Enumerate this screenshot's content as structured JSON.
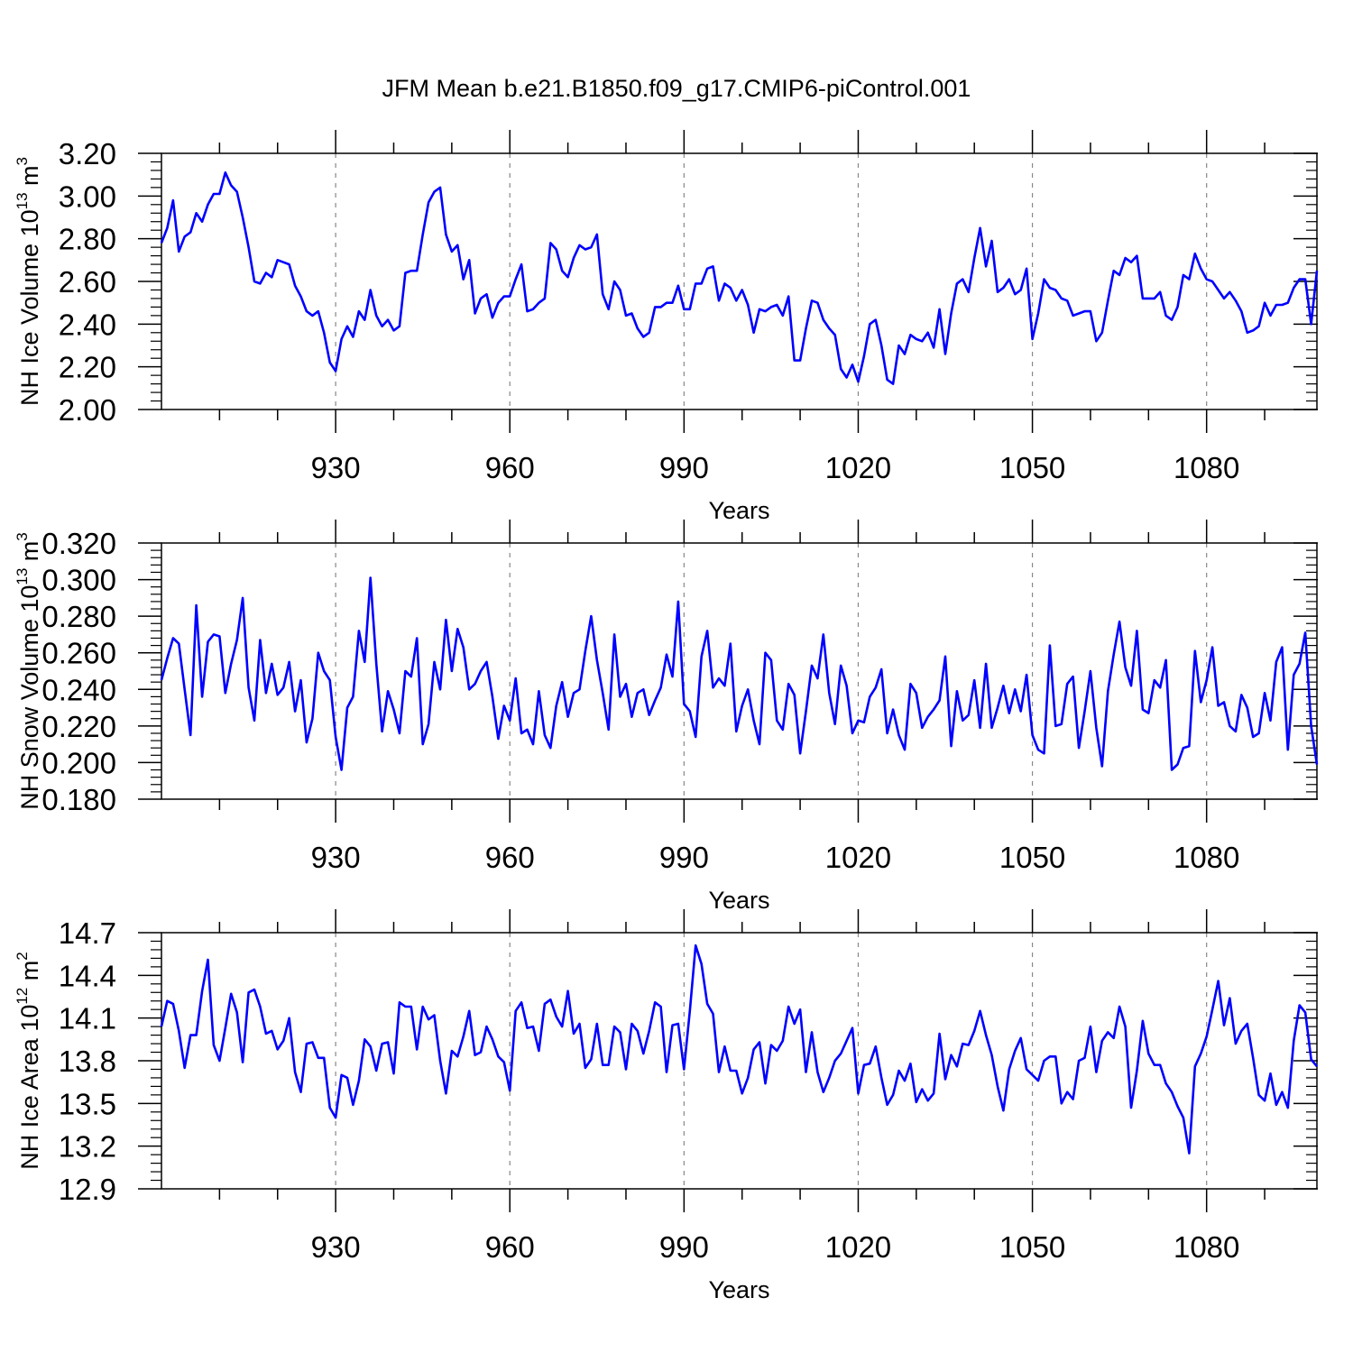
{
  "title": "JFM Mean b.e21.B1850.f09_g17.CMIP6-piControl.001",
  "colors": {
    "series": "#0000ff",
    "axis": "#000000",
    "grid": "#888888"
  },
  "chart_data": [
    {
      "type": "line",
      "ylabel": "NH Ice Volume 10^13 m^3",
      "ylabel_base": "NH Ice Volume 10",
      "ylabel_exp": "13",
      "ylabel_unit": " m",
      "ylabel_unit_exp": "3",
      "xlabel": "Years",
      "xlim": [
        900,
        1099
      ],
      "ylim": [
        2.0,
        3.2
      ],
      "yticks": [
        "2.00",
        "2.20",
        "2.40",
        "2.60",
        "2.80",
        "3.00",
        "3.20"
      ],
      "xticks": [
        "930",
        "960",
        "990",
        "1020",
        "1050",
        "1080"
      ],
      "x_start": 900,
      "values": [
        2.78,
        2.85,
        2.98,
        2.74,
        2.81,
        2.83,
        2.92,
        2.88,
        2.96,
        3.01,
        3.01,
        3.11,
        3.05,
        3.02,
        2.9,
        2.76,
        2.6,
        2.59,
        2.64,
        2.62,
        2.7,
        2.69,
        2.68,
        2.58,
        2.53,
        2.46,
        2.44,
        2.46,
        2.36,
        2.22,
        2.18,
        2.33,
        2.39,
        2.34,
        2.46,
        2.42,
        2.56,
        2.44,
        2.39,
        2.42,
        2.37,
        2.39,
        2.64,
        2.65,
        2.65,
        2.82,
        2.97,
        3.02,
        3.04,
        2.82,
        2.74,
        2.77,
        2.61,
        2.7,
        2.45,
        2.52,
        2.54,
        2.43,
        2.5,
        2.53,
        2.53,
        2.61,
        2.68,
        2.46,
        2.47,
        2.5,
        2.52,
        2.78,
        2.75,
        2.65,
        2.62,
        2.71,
        2.77,
        2.75,
        2.76,
        2.82,
        2.54,
        2.47,
        2.6,
        2.56,
        2.44,
        2.45,
        2.38,
        2.34,
        2.36,
        2.48,
        2.48,
        2.5,
        2.5,
        2.58,
        2.47,
        2.47,
        2.59,
        2.59,
        2.66,
        2.67,
        2.51,
        2.59,
        2.57,
        2.51,
        2.56,
        2.49,
        2.36,
        2.47,
        2.46,
        2.48,
        2.49,
        2.44,
        2.53,
        2.23,
        2.23,
        2.38,
        2.51,
        2.5,
        2.42,
        2.38,
        2.35,
        2.19,
        2.15,
        2.21,
        2.13,
        2.25,
        2.4,
        2.42,
        2.3,
        2.14,
        2.12,
        2.3,
        2.26,
        2.35,
        2.33,
        2.32,
        2.36,
        2.29,
        2.47,
        2.26,
        2.45,
        2.59,
        2.61,
        2.55,
        2.71,
        2.85,
        2.67,
        2.79,
        2.55,
        2.57,
        2.61,
        2.54,
        2.56,
        2.66,
        2.33,
        2.45,
        2.61,
        2.57,
        2.56,
        2.52,
        2.51,
        2.44,
        2.45,
        2.46,
        2.46,
        2.32,
        2.36,
        2.51,
        2.65,
        2.63,
        2.71,
        2.69,
        2.72,
        2.52,
        2.52,
        2.52,
        2.55,
        2.44,
        2.42,
        2.48,
        2.63,
        2.61,
        2.73,
        2.66,
        2.61,
        2.6,
        2.56,
        2.52,
        2.55,
        2.51,
        2.46,
        2.36,
        2.37,
        2.39,
        2.5,
        2.44,
        2.49,
        2.49,
        2.5,
        2.57,
        2.61,
        2.61,
        2.4,
        2.65
      ]
    },
    {
      "type": "line",
      "ylabel": "NH Snow Volume 10^13 m^3",
      "ylabel_base": "NH Snow Volume 10",
      "ylabel_exp": "13",
      "ylabel_unit": " m",
      "ylabel_unit_exp": "3",
      "xlabel": "Years",
      "xlim": [
        900,
        1099
      ],
      "ylim": [
        0.18,
        0.32
      ],
      "yticks": [
        "0.180",
        "0.200",
        "0.220",
        "0.240",
        "0.260",
        "0.280",
        "0.300",
        "0.320"
      ],
      "xticks": [
        "930",
        "960",
        "990",
        "1020",
        "1050",
        "1080"
      ],
      "x_start": 900,
      "values": [
        0.245,
        0.257,
        0.268,
        0.265,
        0.24,
        0.215,
        0.286,
        0.236,
        0.266,
        0.27,
        0.269,
        0.238,
        0.254,
        0.267,
        0.29,
        0.241,
        0.223,
        0.267,
        0.238,
        0.254,
        0.237,
        0.241,
        0.255,
        0.228,
        0.245,
        0.211,
        0.224,
        0.26,
        0.25,
        0.245,
        0.214,
        0.196,
        0.23,
        0.236,
        0.272,
        0.255,
        0.301,
        0.254,
        0.217,
        0.239,
        0.229,
        0.216,
        0.25,
        0.247,
        0.268,
        0.21,
        0.221,
        0.255,
        0.24,
        0.278,
        0.25,
        0.273,
        0.263,
        0.24,
        0.243,
        0.25,
        0.255,
        0.236,
        0.213,
        0.231,
        0.223,
        0.246,
        0.216,
        0.218,
        0.21,
        0.239,
        0.215,
        0.208,
        0.231,
        0.244,
        0.225,
        0.238,
        0.24,
        0.261,
        0.28,
        0.256,
        0.238,
        0.218,
        0.27,
        0.236,
        0.243,
        0.225,
        0.238,
        0.24,
        0.226,
        0.234,
        0.241,
        0.259,
        0.247,
        0.288,
        0.232,
        0.228,
        0.214,
        0.258,
        0.272,
        0.241,
        0.246,
        0.242,
        0.265,
        0.217,
        0.231,
        0.24,
        0.223,
        0.21,
        0.26,
        0.256,
        0.223,
        0.218,
        0.243,
        0.237,
        0.205,
        0.228,
        0.253,
        0.246,
        0.27,
        0.238,
        0.221,
        0.253,
        0.242,
        0.216,
        0.223,
        0.222,
        0.236,
        0.241,
        0.251,
        0.216,
        0.229,
        0.215,
        0.207,
        0.243,
        0.238,
        0.219,
        0.225,
        0.229,
        0.234,
        0.258,
        0.209,
        0.239,
        0.223,
        0.226,
        0.245,
        0.219,
        0.254,
        0.219,
        0.23,
        0.242,
        0.227,
        0.24,
        0.228,
        0.248,
        0.215,
        0.207,
        0.205,
        0.264,
        0.22,
        0.221,
        0.243,
        0.247,
        0.208,
        0.228,
        0.25,
        0.219,
        0.198,
        0.239,
        0.259,
        0.277,
        0.252,
        0.242,
        0.272,
        0.229,
        0.227,
        0.245,
        0.241,
        0.256,
        0.196,
        0.199,
        0.208,
        0.209,
        0.261,
        0.233,
        0.245,
        0.263,
        0.231,
        0.233,
        0.22,
        0.217,
        0.237,
        0.23,
        0.214,
        0.216,
        0.238,
        0.223,
        0.255,
        0.263,
        0.207,
        0.248,
        0.254,
        0.271,
        0.22,
        0.199
      ]
    },
    {
      "type": "line",
      "ylabel": "NH Ice Area 10^12 m^2",
      "ylabel_base": "NH Ice Area 10",
      "ylabel_exp": "12",
      "ylabel_unit": " m",
      "ylabel_unit_exp": "2",
      "xlabel": "Years",
      "xlim": [
        900,
        1099
      ],
      "ylim": [
        12.9,
        14.7
      ],
      "yticks": [
        "12.9",
        "13.2",
        "13.5",
        "13.8",
        "14.1",
        "14.4",
        "14.7"
      ],
      "xticks": [
        "930",
        "960",
        "990",
        "1020",
        "1050",
        "1080"
      ],
      "x_start": 900,
      "values": [
        14.04,
        14.22,
        14.2,
        14.01,
        13.75,
        13.98,
        13.98,
        14.29,
        14.51,
        13.91,
        13.8,
        14.03,
        14.27,
        14.14,
        13.79,
        14.28,
        14.3,
        14.18,
        13.99,
        14.01,
        13.88,
        13.94,
        14.1,
        13.72,
        13.58,
        13.92,
        13.93,
        13.82,
        13.82,
        13.47,
        13.4,
        13.7,
        13.68,
        13.49,
        13.66,
        13.95,
        13.9,
        13.73,
        13.92,
        13.93,
        13.71,
        14.21,
        14.18,
        14.18,
        13.88,
        14.18,
        14.09,
        14.12,
        13.8,
        13.57,
        13.87,
        13.83,
        13.97,
        14.15,
        13.84,
        13.86,
        14.04,
        13.95,
        13.83,
        13.79,
        13.59,
        14.15,
        14.21,
        14.03,
        14.04,
        13.87,
        14.2,
        14.23,
        14.11,
        14.04,
        14.29,
        13.99,
        14.06,
        13.75,
        13.81,
        14.06,
        13.77,
        13.77,
        14.04,
        14.0,
        13.74,
        14.06,
        14.01,
        13.85,
        14.01,
        14.21,
        14.18,
        13.72,
        14.05,
        14.06,
        13.74,
        14.15,
        14.61,
        14.48,
        14.2,
        14.13,
        13.72,
        13.9,
        13.73,
        13.73,
        13.57,
        13.68,
        13.88,
        13.93,
        13.64,
        13.91,
        13.87,
        13.94,
        14.18,
        14.06,
        14.16,
        13.72,
        14.0,
        13.72,
        13.58,
        13.68,
        13.8,
        13.85,
        13.94,
        14.03,
        13.57,
        13.77,
        13.78,
        13.9,
        13.68,
        13.49,
        13.56,
        13.73,
        13.66,
        13.78,
        13.51,
        13.6,
        13.52,
        13.57,
        13.99,
        13.67,
        13.84,
        13.76,
        13.92,
        13.91,
        14.01,
        14.15,
        13.98,
        13.84,
        13.62,
        13.45,
        13.74,
        13.87,
        13.96,
        13.74,
        13.7,
        13.66,
        13.8,
        13.83,
        13.83,
        13.5,
        13.58,
        13.53,
        13.8,
        13.82,
        14.04,
        13.72,
        13.94,
        14.0,
        13.96,
        14.18,
        14.04,
        13.47,
        13.73,
        14.08,
        13.85,
        13.77,
        13.77,
        13.64,
        13.58,
        13.48,
        13.4,
        13.15,
        13.76,
        13.85,
        13.97,
        14.16,
        14.36,
        14.05,
        14.24,
        13.92,
        14.01,
        14.06,
        13.82,
        13.56,
        13.52,
        13.71,
        13.49,
        13.58,
        13.47,
        13.94,
        14.19,
        14.14,
        13.81,
        13.76
      ]
    }
  ]
}
